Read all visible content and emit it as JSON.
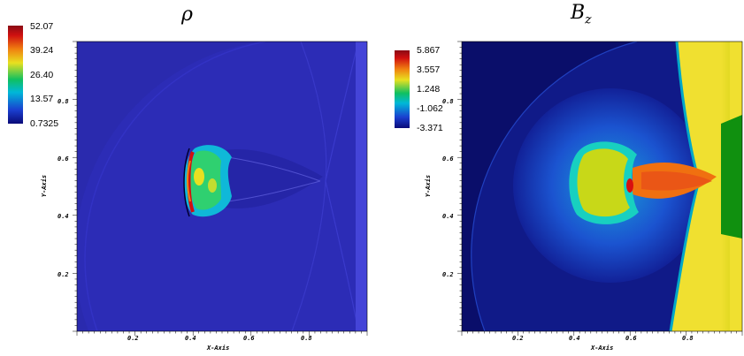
{
  "chart_data": [
    {
      "type": "heatmap",
      "title": "ρ",
      "xlabel": "X-Axis",
      "ylabel": "Y-Axis",
      "xlim": [
        0,
        1
      ],
      "ylim": [
        0,
        1
      ],
      "x_ticks": [
        "0.2",
        "0.4",
        "0.6",
        "0.8"
      ],
      "y_ticks": [
        "0.2",
        "0.4",
        "0.6",
        "0.8"
      ],
      "colorbar": {
        "ticks": [
          "52.07",
          "39.24",
          "26.40",
          "13.57",
          "0.7325"
        ],
        "min": 0.7325,
        "max": 52.07
      }
    },
    {
      "type": "heatmap",
      "title": "B",
      "title_subscript": "z",
      "xlabel": "X-Axis",
      "ylabel": "Y-Axis",
      "xlim": [
        0,
        1
      ],
      "ylim": [
        0,
        1
      ],
      "x_ticks": [
        "0.2",
        "0.4",
        "0.6",
        "0.8"
      ],
      "y_ticks": [
        "0.2",
        "0.4",
        "0.6",
        "0.8"
      ],
      "colorbar": {
        "ticks": [
          "5.867",
          "3.557",
          "1.248",
          "-1.062",
          "-3.371"
        ],
        "min": -3.371,
        "max": 5.867
      }
    }
  ],
  "colormap": [
    "#0a0a78",
    "#1a3fd0",
    "#00b8d8",
    "#10c060",
    "#e8e020",
    "#f08010",
    "#d01010",
    "#8a0a14"
  ]
}
